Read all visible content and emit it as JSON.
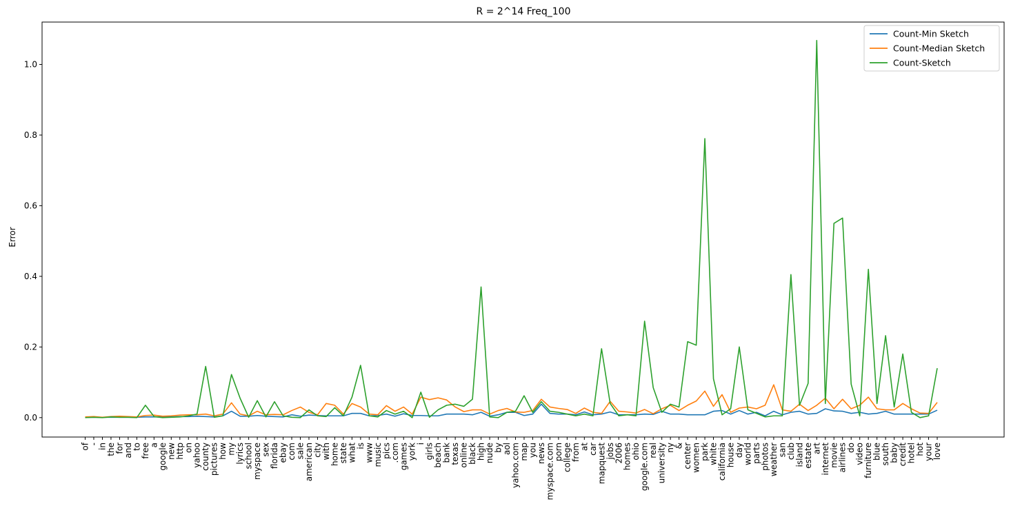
{
  "chart_data": {
    "type": "line",
    "title": "R = 2^14  Freq_100",
    "xlabel": "",
    "ylabel": "Error",
    "ylim": [
      -0.055,
      1.12
    ],
    "yticks": [
      0.0,
      0.2,
      0.4,
      0.6,
      0.8,
      1.0
    ],
    "ytick_labels": [
      "0.0",
      "0.2",
      "0.4",
      "0.6",
      "0.8",
      "1.0"
    ],
    "legend_position": "top-right",
    "grid": false,
    "categories": [
      "of",
      "-",
      "in",
      "the",
      "for",
      "and",
      "to",
      "free",
      "a",
      "google",
      "new",
      "http",
      "on",
      "yahoo",
      "county",
      "pictures",
      "how",
      "my",
      "lyrics",
      "school",
      "myspace",
      "sex",
      "florida",
      "ebay",
      "com",
      "sale",
      "american",
      "city",
      "with",
      "home",
      "state",
      "what",
      "is",
      "www",
      "music",
      "pics",
      ".com",
      "games",
      "york",
      "i",
      "girls",
      "beach",
      "bank",
      "texas",
      "online",
      "black",
      "high",
      "nude",
      "by",
      "aol",
      "yahoo.com",
      "map",
      "you",
      "news",
      "myspace.com",
      "porn",
      "college",
      "from",
      "at",
      "car",
      "mapquest",
      "jobs",
      "2006",
      "homes",
      "ohio",
      "google.com",
      "real",
      "university",
      "ny",
      "&",
      "center",
      "women",
      "park",
      "white",
      "california",
      "house",
      "day",
      "world",
      "parts",
      "photos",
      "weather",
      "san",
      "club",
      "island",
      "estate",
      "art",
      "internet",
      "movie",
      "airlines",
      "do",
      "video",
      "furniture",
      "blue",
      "south",
      "baby",
      "credit",
      "hotel",
      "hot",
      "your",
      "love"
    ],
    "series": [
      {
        "name": "Count-Min Sketch",
        "color": "#1f77b4",
        "values": [
          0.001,
          0.001,
          0.001,
          0.001,
          0.001,
          0.001,
          0.001,
          0.002,
          0.002,
          0.002,
          0.002,
          0.003,
          0.003,
          0.004,
          0.003,
          0.002,
          0.005,
          0.018,
          0.004,
          0.004,
          0.006,
          0.004,
          0.003,
          0.002,
          0.008,
          0.004,
          0.007,
          0.006,
          0.005,
          0.005,
          0.005,
          0.012,
          0.012,
          0.005,
          0.006,
          0.01,
          0.004,
          0.011,
          0.006,
          0.006,
          0.005,
          0.005,
          0.01,
          0.01,
          0.01,
          0.008,
          0.015,
          0.004,
          0.008,
          0.015,
          0.015,
          0.006,
          0.01,
          0.038,
          0.012,
          0.01,
          0.01,
          0.008,
          0.016,
          0.008,
          0.01,
          0.016,
          0.008,
          0.008,
          0.008,
          0.01,
          0.009,
          0.018,
          0.01,
          0.01,
          0.008,
          0.008,
          0.008,
          0.018,
          0.02,
          0.01,
          0.02,
          0.01,
          0.015,
          0.005,
          0.018,
          0.008,
          0.015,
          0.018,
          0.01,
          0.012,
          0.025,
          0.019,
          0.018,
          0.012,
          0.015,
          0.01,
          0.012,
          0.018,
          0.01,
          0.01,
          0.01,
          0.01,
          0.01,
          0.021
        ]
      },
      {
        "name": "Count-Median Sketch",
        "color": "#ff7f0e",
        "values": [
          0.002,
          0.003,
          0.001,
          0.003,
          0.004,
          0.003,
          0.002,
          0.006,
          0.007,
          0.004,
          0.005,
          0.007,
          0.008,
          0.008,
          0.01,
          0.005,
          0.01,
          0.042,
          0.01,
          0.005,
          0.018,
          0.008,
          0.009,
          0.008,
          0.02,
          0.03,
          0.015,
          0.008,
          0.04,
          0.035,
          0.01,
          0.04,
          0.03,
          0.01,
          0.008,
          0.034,
          0.018,
          0.03,
          0.01,
          0.058,
          0.051,
          0.056,
          0.05,
          0.03,
          0.017,
          0.022,
          0.022,
          0.01,
          0.02,
          0.026,
          0.016,
          0.015,
          0.02,
          0.052,
          0.03,
          0.026,
          0.023,
          0.012,
          0.027,
          0.015,
          0.012,
          0.046,
          0.018,
          0.016,
          0.013,
          0.023,
          0.011,
          0.025,
          0.035,
          0.02,
          0.035,
          0.047,
          0.075,
          0.032,
          0.065,
          0.015,
          0.027,
          0.03,
          0.025,
          0.035,
          0.093,
          0.022,
          0.018,
          0.038,
          0.02,
          0.035,
          0.055,
          0.025,
          0.052,
          0.025,
          0.035,
          0.058,
          0.025,
          0.022,
          0.022,
          0.04,
          0.025,
          0.013,
          0.012,
          0.043
        ]
      },
      {
        "name": "Count-Sketch",
        "color": "#2ca02c",
        "values": [
          0.0,
          0.001,
          0.0,
          0.002,
          0.001,
          0.001,
          0.0,
          0.035,
          0.003,
          0.0,
          0.001,
          0.002,
          0.005,
          0.01,
          0.145,
          0.001,
          0.005,
          0.122,
          0.055,
          0.001,
          0.048,
          0.002,
          0.045,
          0.005,
          0.001,
          0.0,
          0.022,
          0.005,
          0.003,
          0.028,
          0.005,
          0.058,
          0.148,
          0.005,
          0.002,
          0.02,
          0.01,
          0.018,
          0.0,
          0.072,
          0.001,
          0.022,
          0.035,
          0.038,
          0.032,
          0.052,
          0.37,
          0.002,
          0.0,
          0.015,
          0.018,
          0.062,
          0.015,
          0.045,
          0.018,
          0.015,
          0.01,
          0.005,
          0.01,
          0.005,
          0.195,
          0.04,
          0.005,
          0.008,
          0.005,
          0.273,
          0.085,
          0.015,
          0.038,
          0.03,
          0.215,
          0.205,
          0.79,
          0.11,
          0.008,
          0.025,
          0.2,
          0.022,
          0.012,
          0.002,
          0.005,
          0.005,
          0.405,
          0.035,
          0.097,
          1.068,
          0.04,
          0.55,
          0.565,
          0.095,
          0.005,
          0.42,
          0.04,
          0.232,
          0.03,
          0.18,
          0.015,
          0.0,
          0.005,
          0.14
        ]
      }
    ]
  }
}
